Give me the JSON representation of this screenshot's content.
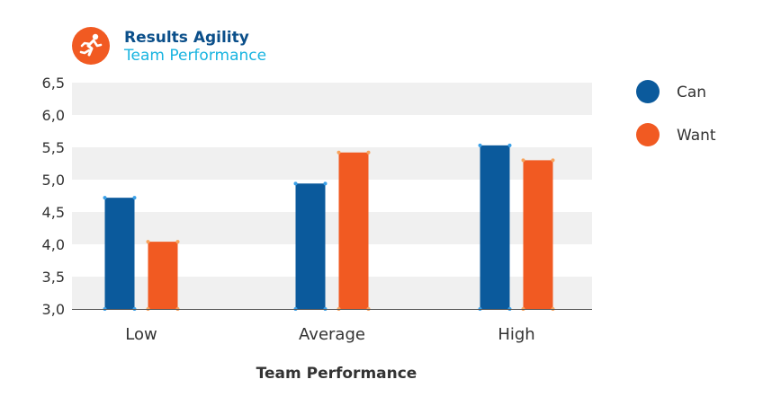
{
  "header": {
    "title": "Results Agility",
    "subtitle": "Team Performance",
    "logo_icon": "running-person-icon",
    "logo_color": "#f15a22"
  },
  "chart_data": {
    "type": "bar",
    "title": "",
    "xlabel": "Team Performance",
    "ylabel": "",
    "categories": [
      "Low",
      "Average",
      "High"
    ],
    "series": [
      {
        "name": "Can",
        "values": [
          4.72,
          4.94,
          5.53
        ],
        "color": "#0b5a9c"
      },
      {
        "name": "Want",
        "values": [
          4.04,
          5.42,
          5.3
        ],
        "color": "#f15a22"
      }
    ],
    "ylim": [
      3.0,
      6.5
    ],
    "yticks": [
      "3,0",
      "3,5",
      "4,0",
      "4,5",
      "5,0",
      "5,5",
      "6,0",
      "6,5"
    ],
    "grid": "alternating bands",
    "legend": "right"
  }
}
